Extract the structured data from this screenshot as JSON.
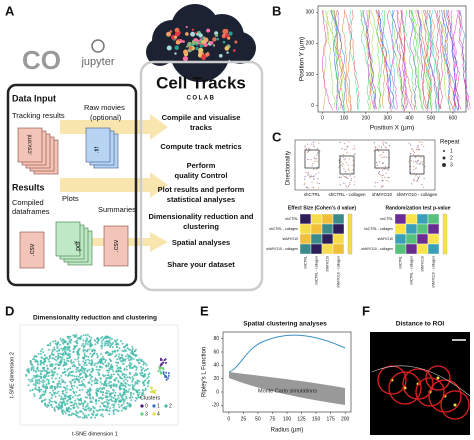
{
  "panels": {
    "a": {
      "letter": "A",
      "logos": {
        "colab": "CO",
        "jupyter": "jupyter"
      },
      "input": {
        "title": "Data Input",
        "tracking": "Tracking results",
        "raw": [
          "Raw movies",
          "(optional)"
        ],
        "tracking_files": [
          ".xml",
          ".csv"
        ],
        "raw_file": ".tif"
      },
      "results": {
        "title": "Results",
        "compiled": [
          "Compiled",
          "dataframes"
        ],
        "plots": "Plots",
        "summaries": "Summaries",
        "files": [
          ".csv",
          ".pdf",
          ".csv"
        ]
      },
      "app": {
        "name": "Cell Tracks",
        "sub": "COLAB"
      },
      "steps": [
        [
          "Compile and visualise",
          "tracks"
        ],
        [
          "Compute track metrics"
        ],
        [
          "Perform",
          "quality Control"
        ],
        [
          "Plot results and perform",
          "statistical analyses"
        ],
        [
          "Dimensionality reduction and",
          "clustering"
        ],
        [
          "Spatial analyses"
        ],
        [
          "Share your dataset"
        ]
      ]
    },
    "b": {
      "letter": "B",
      "xlabel": "Position X (µm)",
      "ylabel": "Position Y (µm)",
      "xlim": [
        -20,
        660
      ],
      "ylim": [
        -20,
        320
      ],
      "xticks": [
        0,
        100,
        200,
        300,
        400,
        500,
        600
      ],
      "yticks": [
        0,
        100,
        200,
        300
      ]
    },
    "c": {
      "letter": "C",
      "ylabel": "Directionality",
      "legend_title": "Repeat",
      "legend": [
        "1",
        "2",
        "3"
      ],
      "conditions": [
        "shCTRL",
        "shCTRL - collagen",
        "shMYO10",
        "shMYO10 - collagen"
      ],
      "heatmaps": [
        "Effect Size (Cohen's d value)",
        "Randomization test p-value"
      ]
    },
    "d": {
      "letter": "D",
      "title": "Dimensionality reduction and clustering",
      "xlabel": "t-SNE dimension 1",
      "ylabel": "t-SNE dimension 2",
      "legend_title": "Clusters",
      "clusters": [
        "0",
        "1",
        "2",
        "3",
        "4"
      ]
    },
    "e": {
      "letter": "E",
      "title": "Spatial clustering analyses",
      "xlabel": "Radius (µm)",
      "ylabel": "Ripley's L Function",
      "annotation": "Monte Carlo simulations",
      "xlim": [
        -10,
        210
      ],
      "ylim": [
        -30,
        90
      ],
      "xticks": [
        0,
        25,
        50,
        75,
        100,
        125,
        150,
        175,
        200
      ],
      "yticks": [
        -20,
        0,
        20,
        40,
        60,
        80
      ]
    },
    "f": {
      "letter": "F",
      "title": "Distance to ROI"
    }
  }
}
